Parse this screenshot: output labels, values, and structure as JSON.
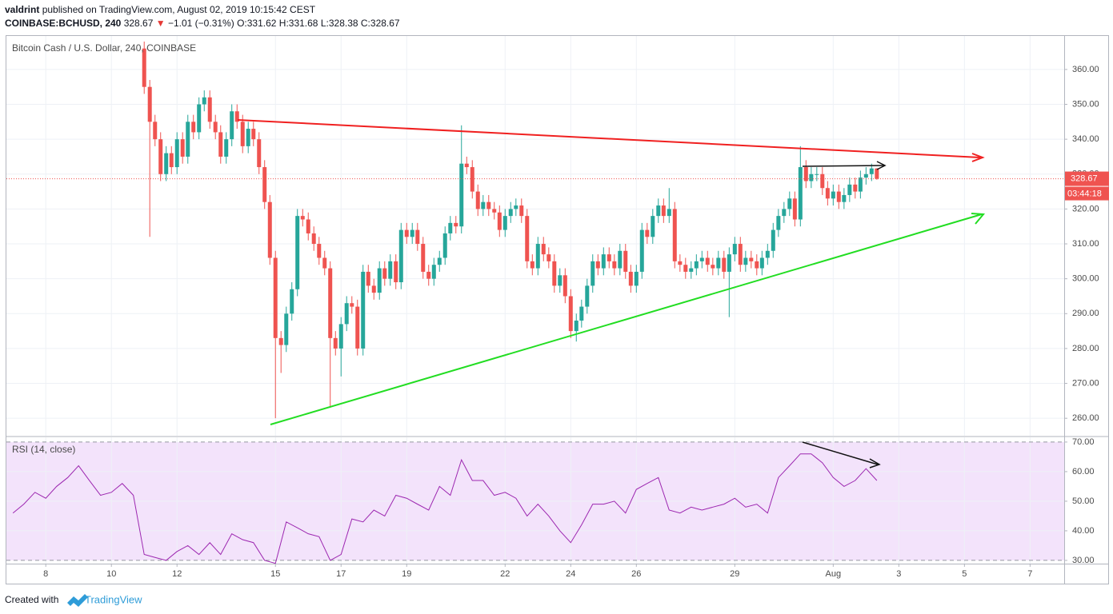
{
  "header": {
    "publisher": "valdrint",
    "published": "published on TradingView.com, August 02, 2019 10:15:42 CEST",
    "symbol": "COINBASE:BCHUSD, 240",
    "last": "328.67",
    "change": "−1.01 (−0.31%)",
    "ohlc": [
      {
        "label": "O:",
        "value": "331.62"
      },
      {
        "label": "H:",
        "value": "331.68"
      },
      {
        "label": "L:",
        "value": "328.38"
      },
      {
        "label": "C:",
        "value": "328.67"
      }
    ]
  },
  "chart_data": [
    {
      "type": "candlestick",
      "title": "Bitcoin Cash / U.S. Dollar, 240, COINBASE",
      "countdown": "03:44:18",
      "up_color": "#26a69a",
      "down_color": "#ef5350",
      "xlim": [
        6.8,
        39.04
      ],
      "ylim": [
        255,
        369.6
      ],
      "yticks": [
        {
          "value": 260,
          "label": "260.00"
        },
        {
          "value": 270,
          "label": "270.00"
        },
        {
          "value": 280,
          "label": "280.00"
        },
        {
          "value": 290,
          "label": "290.00"
        },
        {
          "value": 300,
          "label": "300.00"
        },
        {
          "value": 310,
          "label": "310.00"
        },
        {
          "value": 320,
          "label": "320.00"
        },
        {
          "value": 330,
          "label": "330.00"
        },
        {
          "value": 340,
          "label": "340.00"
        },
        {
          "value": 350,
          "label": "350.00"
        },
        {
          "value": 360,
          "label": "360.00"
        }
      ],
      "x": [
        11,
        11.17,
        11.33,
        11.5,
        11.67,
        11.83,
        12,
        12.17,
        12.33,
        12.5,
        12.67,
        12.83,
        13,
        13.17,
        13.33,
        13.5,
        13.67,
        13.83,
        14,
        14.17,
        14.33,
        14.5,
        14.67,
        14.83,
        15,
        15.17,
        15.33,
        15.5,
        15.67,
        15.83,
        16,
        16.17,
        16.33,
        16.5,
        16.67,
        16.83,
        17,
        17.17,
        17.33,
        17.5,
        17.67,
        17.83,
        18,
        18.17,
        18.33,
        18.5,
        18.67,
        18.83,
        19,
        19.17,
        19.33,
        19.5,
        19.67,
        19.83,
        20,
        20.17,
        20.33,
        20.5,
        20.67,
        20.83,
        21,
        21.17,
        21.33,
        21.5,
        21.67,
        21.83,
        22,
        22.17,
        22.33,
        22.5,
        22.67,
        22.83,
        23,
        23.17,
        23.33,
        23.5,
        23.67,
        23.83,
        24,
        24.17,
        24.33,
        24.5,
        24.67,
        24.83,
        25,
        25.17,
        25.33,
        25.5,
        25.67,
        25.83,
        26,
        26.17,
        26.33,
        26.5,
        26.67,
        26.83,
        27,
        27.17,
        27.33,
        27.5,
        27.67,
        27.83,
        28,
        28.17,
        28.33,
        28.5,
        28.67,
        28.83,
        29,
        29.17,
        29.33,
        29.5,
        29.67,
        29.83,
        30,
        30.17,
        30.33,
        30.5,
        30.67,
        30.83,
        31,
        31.17,
        31.33,
        31.5,
        31.67,
        31.83,
        32,
        32.17,
        32.33,
        32.5,
        32.67,
        32.83,
        33,
        33.17,
        33.33
      ],
      "open": [
        366,
        355,
        345,
        340,
        330,
        336,
        332,
        340,
        335,
        345,
        342,
        350,
        352,
        345,
        342,
        335,
        340,
        348,
        345,
        338,
        343,
        340,
        332,
        322,
        306,
        283,
        281,
        290,
        297,
        318,
        317,
        313,
        310,
        306,
        303,
        283,
        280,
        287,
        293,
        292,
        280,
        302,
        298,
        296,
        303,
        300,
        305,
        299,
        314,
        312,
        314,
        310,
        302,
        300,
        304,
        306,
        313,
        316,
        315,
        333,
        332,
        325,
        320,
        322,
        320,
        319,
        314,
        318,
        320,
        321,
        318,
        305,
        303,
        310,
        307,
        305,
        298,
        301,
        295,
        285,
        288,
        292,
        298,
        305,
        303,
        307,
        305,
        303,
        308,
        302,
        298,
        302,
        314,
        312,
        318,
        321,
        318,
        320,
        305,
        304,
        302,
        303,
        305,
        306,
        304,
        303,
        306,
        302,
        307,
        310,
        304,
        306,
        305,
        303,
        306,
        308,
        314,
        318,
        320,
        323,
        317,
        332,
        328,
        330,
        330,
        326,
        323,
        325,
        322,
        324,
        327,
        325,
        329,
        330,
        331.62
      ],
      "high": [
        368,
        357,
        347,
        342,
        338,
        338,
        342,
        342,
        347,
        347,
        352,
        354,
        354,
        347,
        344,
        342,
        350,
        350,
        347,
        345,
        345,
        342,
        334,
        324,
        308,
        285,
        292,
        299,
        320,
        320,
        319,
        315,
        312,
        308,
        305,
        285,
        289,
        295,
        295,
        294,
        304,
        304,
        300,
        305,
        305,
        307,
        307,
        316,
        316,
        316,
        316,
        312,
        304,
        306,
        308,
        315,
        318,
        318,
        344,
        335,
        334,
        327,
        324,
        324,
        322,
        321,
        320,
        322,
        323,
        323,
        320,
        307,
        312,
        312,
        309,
        307,
        303,
        303,
        297,
        290,
        294,
        300,
        307,
        307,
        309,
        309,
        307,
        310,
        310,
        304,
        304,
        316,
        316,
        320,
        323,
        323,
        326,
        322,
        307,
        306,
        305,
        307,
        308,
        308,
        306,
        308,
        308,
        309,
        312,
        312,
        308,
        308,
        307,
        308,
        310,
        316,
        320,
        322,
        325,
        325,
        338,
        334,
        332,
        332,
        332,
        328,
        327,
        327,
        326,
        329,
        329,
        331,
        332,
        333,
        331.68
      ],
      "low": [
        353,
        312,
        338,
        328,
        328,
        330,
        330,
        333,
        333,
        340,
        340,
        348,
        343,
        340,
        333,
        333,
        338,
        343,
        336,
        336,
        338,
        330,
        320,
        304,
        260,
        273,
        279,
        288,
        295,
        315,
        311,
        308,
        304,
        301,
        263,
        278,
        272,
        285,
        290,
        278,
        278,
        296,
        294,
        294,
        298,
        298,
        297,
        297,
        310,
        310,
        308,
        300,
        298,
        298,
        302,
        304,
        311,
        313,
        313,
        330,
        323,
        318,
        318,
        318,
        317,
        312,
        312,
        316,
        318,
        316,
        303,
        301,
        301,
        305,
        303,
        296,
        296,
        293,
        283,
        282,
        286,
        290,
        296,
        301,
        301,
        303,
        301,
        301,
        300,
        296,
        296,
        300,
        310,
        310,
        316,
        316,
        316,
        303,
        302,
        300,
        300,
        301,
        303,
        302,
        301,
        301,
        300,
        289,
        305,
        302,
        302,
        303,
        301,
        301,
        304,
        306,
        312,
        316,
        318,
        315,
        315,
        326,
        326,
        328,
        324,
        321,
        321,
        320,
        320,
        322,
        323,
        323,
        327,
        328,
        328.38
      ],
      "close": [
        355,
        345,
        340,
        330,
        336,
        332,
        340,
        335,
        345,
        342,
        350,
        352,
        345,
        342,
        335,
        340,
        348,
        345,
        338,
        343,
        340,
        332,
        322,
        306,
        283,
        281,
        290,
        297,
        318,
        317,
        313,
        310,
        306,
        303,
        283,
        280,
        287,
        293,
        292,
        280,
        302,
        298,
        296,
        303,
        300,
        305,
        299,
        314,
        312,
        314,
        310,
        302,
        300,
        304,
        306,
        313,
        316,
        315,
        333,
        332,
        325,
        320,
        322,
        320,
        319,
        314,
        318,
        320,
        321,
        318,
        305,
        303,
        310,
        307,
        305,
        298,
        301,
        295,
        285,
        288,
        292,
        298,
        305,
        303,
        307,
        305,
        303,
        308,
        302,
        298,
        302,
        314,
        312,
        318,
        321,
        318,
        320,
        305,
        304,
        302,
        303,
        305,
        306,
        304,
        303,
        306,
        302,
        307,
        310,
        304,
        306,
        305,
        303,
        306,
        308,
        314,
        318,
        320,
        323,
        317,
        332,
        328,
        330,
        330,
        326,
        323,
        325,
        322,
        324,
        327,
        325,
        329,
        330,
        331.62,
        328.67
      ]
    },
    {
      "type": "line",
      "title": "RSI (14, close)",
      "xlim": [
        6.8,
        39.04
      ],
      "ylim": [
        28.9,
        71.6
      ],
      "band": [
        30,
        70
      ],
      "band_color": "#f3e3fb",
      "yticks": [
        {
          "value": 30,
          "label": "30.00"
        },
        {
          "value": 40,
          "label": "40.00"
        },
        {
          "value": 50,
          "label": "50.00"
        },
        {
          "value": 60,
          "label": "60.00"
        },
        {
          "value": 70,
          "label": "70.00"
        }
      ],
      "xticks": [
        8,
        10,
        12,
        15,
        17,
        19,
        22,
        24,
        26,
        29,
        {
          "value": 32,
          "label": "Aug"
        },
        {
          "value": 34,
          "label": "3"
        },
        {
          "value": 36,
          "label": "5"
        },
        {
          "value": 38,
          "label": "7"
        }
      ],
      "x": [
        7,
        7.33,
        7.67,
        8,
        8.33,
        8.67,
        9,
        9.33,
        9.67,
        10,
        10.33,
        10.67,
        11,
        11.33,
        11.67,
        12,
        12.33,
        12.67,
        13,
        13.33,
        13.67,
        14,
        14.33,
        14.67,
        15,
        15.33,
        15.67,
        16,
        16.33,
        16.67,
        17,
        17.33,
        17.67,
        18,
        18.33,
        18.67,
        19,
        19.33,
        19.67,
        20,
        20.33,
        20.67,
        21,
        21.33,
        21.67,
        22,
        22.33,
        22.67,
        23,
        23.33,
        23.67,
        24,
        24.33,
        24.67,
        25,
        25.33,
        25.67,
        26,
        26.33,
        26.67,
        27,
        27.33,
        27.67,
        28,
        28.33,
        28.67,
        29,
        29.33,
        29.67,
        30,
        30.33,
        30.67,
        31,
        31.33,
        31.67,
        32,
        32.33,
        32.67,
        33,
        33.33
      ],
      "series": [
        {
          "name": "RSI",
          "color": "#9c27b0",
          "values": [
            46,
            49,
            53,
            51,
            55,
            58,
            62,
            57,
            52,
            53,
            56,
            52,
            32,
            31,
            30,
            33,
            35,
            32,
            36,
            32,
            39,
            37,
            36,
            30,
            29,
            43,
            41,
            39,
            38,
            30,
            32,
            44,
            43,
            47,
            45,
            52,
            51,
            49,
            47,
            55,
            52,
            64,
            57,
            57,
            52,
            53,
            51,
            45,
            49,
            45,
            40,
            36,
            42,
            49,
            49,
            50,
            46,
            54,
            56,
            58,
            47,
            46,
            48,
            47,
            48,
            49,
            51,
            48,
            49,
            46,
            58,
            62,
            66,
            66,
            63,
            58,
            55,
            57,
            61,
            57
          ]
        }
      ]
    }
  ],
  "footer": {
    "created": "Created with",
    "brand": "TradingView"
  }
}
